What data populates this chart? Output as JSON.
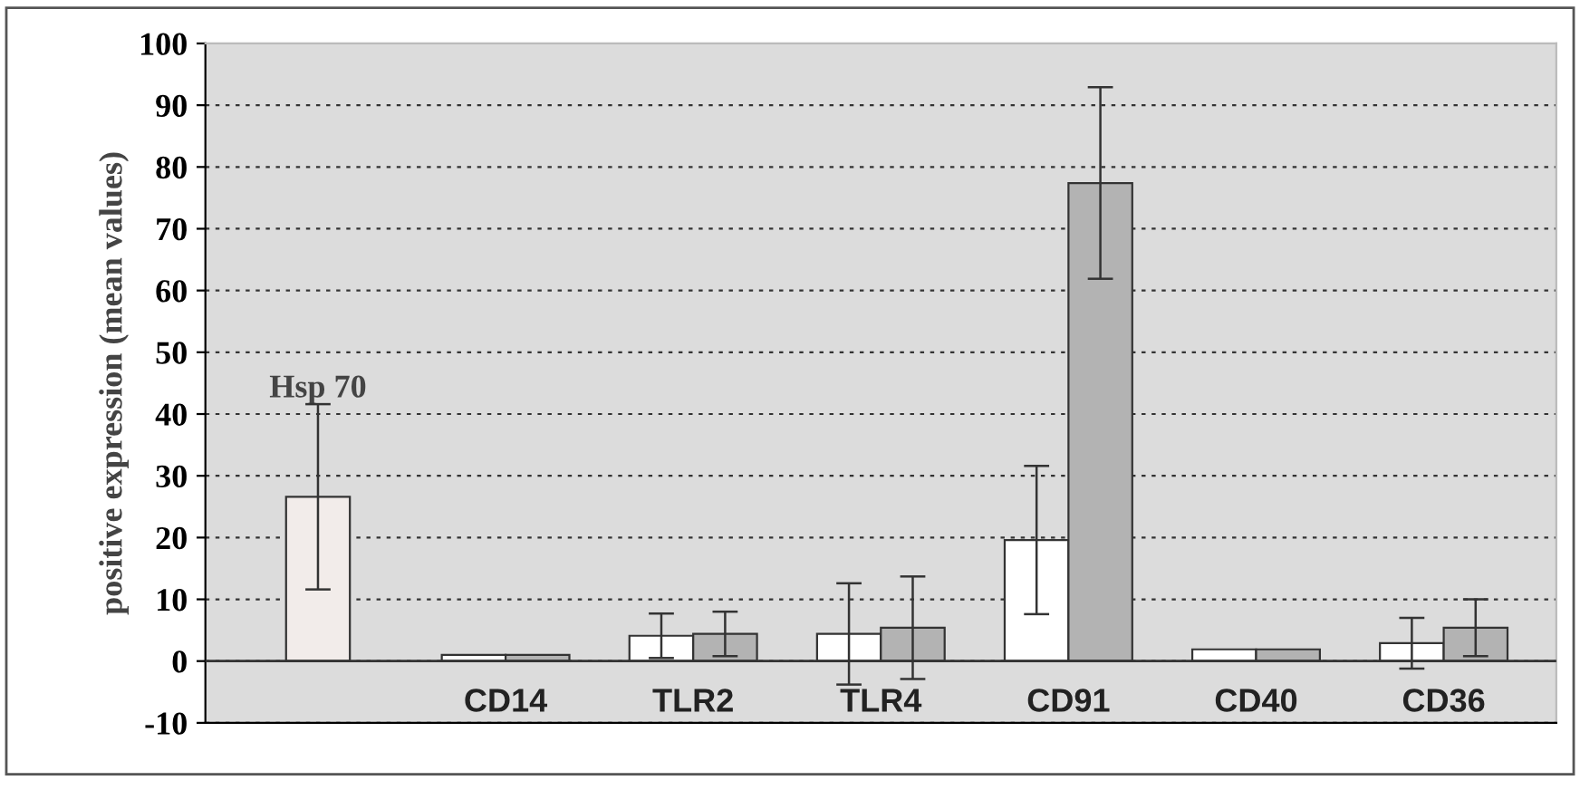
{
  "chart_data": {
    "type": "bar",
    "ylabel": "positive expression (mean values)",
    "categories": [
      null,
      "CD14",
      "TLR2",
      "TLR4",
      "CD91",
      "CD40",
      "CD36"
    ],
    "series": [
      {
        "name": "Hsp 70",
        "color": "#f2ecea",
        "values": [
          26.6,
          null,
          null,
          null,
          null,
          null,
          null
        ],
        "errors": [
          15,
          null,
          null,
          null,
          null,
          null,
          null
        ]
      },
      {
        "color": "#ffffff",
        "values": [
          null,
          1.0,
          4.1,
          4.4,
          19.6,
          1.9,
          2.9
        ],
        "errors": [
          null,
          null,
          3.6,
          8.2,
          12,
          null,
          4.1
        ]
      },
      {
        "color": "#b3b3b3",
        "values": [
          null,
          1.0,
          4.4,
          5.4,
          77.4,
          1.9,
          5.4
        ],
        "errors": [
          null,
          null,
          3.6,
          8.3,
          15.5,
          null,
          4.6
        ]
      }
    ],
    "ylim": [
      -10,
      100
    ],
    "yticks": [
      -10,
      0,
      10,
      20,
      30,
      40,
      50,
      60,
      70,
      80,
      90,
      100
    ],
    "grid": "y",
    "legend": false
  }
}
